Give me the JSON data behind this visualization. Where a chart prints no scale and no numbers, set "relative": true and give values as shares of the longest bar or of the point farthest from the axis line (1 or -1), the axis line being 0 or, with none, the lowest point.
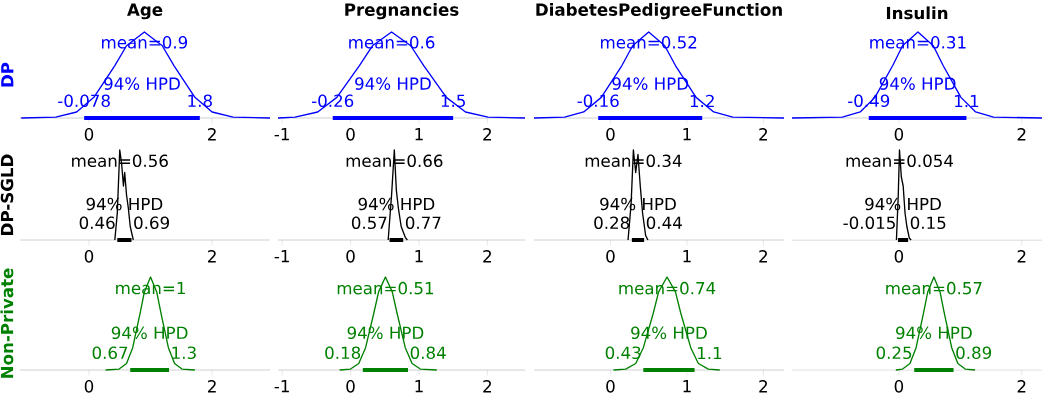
{
  "chart_data": [
    {
      "type": "line",
      "relative": true,
      "title": "Age",
      "ylabel": "DP",
      "xlim": [
        -1.12,
        2.94
      ],
      "xticks": [
        0,
        2
      ],
      "series": [
        {
          "color": "#0000ff",
          "x": [
            -1.1,
            -0.54,
            -0.2,
            0.08,
            0.42,
            0.61,
            0.9,
            1.19,
            1.38,
            1.72,
            2.0,
            2.34,
            2.94
          ],
          "values": [
            0,
            0.01,
            0.07,
            0.24,
            0.61,
            0.84,
            1,
            0.84,
            0.61,
            0.24,
            0.07,
            0.01,
            0
          ]
        },
        {
          "name": "94% HPD",
          "color": "#0000ff",
          "x": [
            -0.078,
            1.8
          ],
          "values": [
            0,
            0
          ]
        }
      ],
      "annotations": [
        "mean=0.9",
        {
          "text": "-0.078",
          "x": -0.078,
          "y": 0
        },
        {
          "text": "1.8",
          "x": 1.8,
          "y": 0
        }
      ]
    },
    {
      "type": "line",
      "relative": true,
      "title": "Pregnancies",
      "xlim": [
        -1.06,
        2.55
      ],
      "xticks": [
        -1,
        0,
        1,
        2
      ],
      "series": [
        {
          "color": "#0000ff",
          "x": [
            -1.06,
            -0.81,
            -0.48,
            -0.2,
            0.13,
            0.32,
            0.6,
            0.88,
            1.07,
            1.4,
            1.68,
            2.01,
            2.55
          ],
          "values": [
            0,
            0.01,
            0.07,
            0.24,
            0.61,
            0.84,
            1,
            0.84,
            0.61,
            0.24,
            0.07,
            0.01,
            0
          ]
        },
        {
          "name": "94% HPD",
          "color": "#0000ff",
          "x": [
            -0.26,
            1.5
          ],
          "values": [
            0,
            0
          ]
        }
      ],
      "annotations": [
        "mean=0.6",
        {
          "text": "-0.26",
          "x": -0.26,
          "y": 0
        },
        {
          "text": "1.5",
          "x": 1.5,
          "y": 0
        }
      ]
    },
    {
      "type": "line",
      "relative": true,
      "title": "DiabetesPedigreeFunction",
      "xlim": [
        -1.0,
        2.27
      ],
      "xticks": [
        0,
        1,
        2
      ],
      "series": [
        {
          "color": "#0000ff",
          "x": [
            -1.0,
            -0.6,
            -0.35,
            -0.12,
            0.15,
            0.29,
            0.5,
            0.71,
            0.85,
            1.12,
            1.35,
            1.6,
            2.27
          ],
          "values": [
            0,
            0.01,
            0.07,
            0.24,
            0.61,
            0.84,
            1,
            0.84,
            0.61,
            0.24,
            0.07,
            0.01,
            0
          ]
        },
        {
          "name": "94% HPD",
          "color": "#0000ff",
          "x": [
            -0.16,
            1.2
          ],
          "values": [
            0,
            0
          ]
        }
      ],
      "annotations": [
        "mean=0.52",
        {
          "text": "-0.16",
          "x": -0.16,
          "y": 0
        },
        {
          "text": "1.2",
          "x": 1.2,
          "y": 0
        }
      ]
    },
    {
      "type": "line",
      "relative": true,
      "title": "Insulin",
      "xlim": [
        -1.74,
        2.33
      ],
      "xticks": [
        0,
        2
      ],
      "series": [
        {
          "color": "#0000ff",
          "x": [
            -1.74,
            -0.92,
            -0.63,
            -0.39,
            -0.1,
            0.06,
            0.31,
            0.56,
            0.72,
            1.01,
            1.25,
            1.54,
            2.33
          ],
          "values": [
            0,
            0.01,
            0.07,
            0.24,
            0.61,
            0.84,
            1,
            0.84,
            0.61,
            0.24,
            0.07,
            0.01,
            0
          ]
        },
        {
          "name": "94% HPD",
          "color": "#0000ff",
          "x": [
            -0.49,
            1.1
          ],
          "values": [
            0,
            0
          ]
        }
      ],
      "annotations": [
        "mean=0.31",
        {
          "text": "-0.49",
          "x": -0.49,
          "y": 0
        },
        {
          "text": "1.1",
          "x": 1.1,
          "y": 0
        }
      ]
    },
    {
      "type": "line",
      "relative": true,
      "ylabel": "DP-SGLD",
      "xlim": [
        -1.12,
        2.94
      ],
      "xticks": [
        0,
        2
      ],
      "series": [
        {
          "color": "#000000",
          "x": [
            0.42,
            0.46,
            0.5,
            0.53,
            0.56,
            0.58,
            0.61,
            0.64,
            0.67,
            0.72
          ],
          "values": [
            0,
            0.3,
            1,
            0.85,
            0.6,
            0.75,
            0.5,
            0.35,
            0.15,
            0
          ]
        },
        {
          "name": "94% HPD",
          "color": "#000000",
          "x": [
            0.46,
            0.69
          ],
          "values": [
            0,
            0
          ]
        }
      ],
      "annotations": [
        "mean=0.56",
        {
          "text": "0.46",
          "x": 0.46,
          "y": 0
        },
        {
          "text": "0.69",
          "x": 0.69,
          "y": 0
        }
      ]
    },
    {
      "type": "line",
      "relative": true,
      "xlim": [
        -1.06,
        2.55
      ],
      "xticks": [
        -1,
        0,
        1,
        2
      ],
      "series": [
        {
          "color": "#000000",
          "x": [
            0.55,
            0.6,
            0.64,
            0.67,
            0.7,
            0.74,
            0.8,
            0.83
          ],
          "values": [
            0,
            0.5,
            1,
            0.55,
            0.35,
            0.15,
            0.03,
            0
          ]
        },
        {
          "name": "94% HPD",
          "color": "#000000",
          "x": [
            0.57,
            0.77
          ],
          "values": [
            0,
            0
          ]
        }
      ],
      "annotations": [
        "mean=0.66",
        {
          "text": "0.57",
          "x": 0.57,
          "y": 0
        },
        {
          "text": "0.77",
          "x": 0.77,
          "y": 0
        }
      ]
    },
    {
      "type": "line",
      "relative": true,
      "xlim": [
        -1.0,
        2.27
      ],
      "xticks": [
        0,
        1,
        2
      ],
      "series": [
        {
          "color": "#000000",
          "x": [
            0.23,
            0.27,
            0.3,
            0.33,
            0.36,
            0.39,
            0.42,
            0.46,
            0.49
          ],
          "values": [
            0,
            0.4,
            1,
            0.75,
            0.95,
            0.6,
            0.3,
            0.05,
            0
          ]
        },
        {
          "name": "94% HPD",
          "color": "#000000",
          "x": [
            0.28,
            0.44
          ],
          "values": [
            0,
            0
          ]
        }
      ],
      "annotations": [
        "mean=0.34",
        {
          "text": "0.28",
          "x": 0.28,
          "y": 0
        },
        {
          "text": "0.44",
          "x": 0.44,
          "y": 0
        }
      ]
    },
    {
      "type": "line",
      "relative": true,
      "xlim": [
        -1.74,
        2.33
      ],
      "xticks": [
        0,
        2
      ],
      "series": [
        {
          "color": "#000000",
          "x": [
            -0.04,
            -0.01,
            0.01,
            0.04,
            0.07,
            0.1,
            0.13,
            0.17,
            0.2
          ],
          "values": [
            0,
            0.5,
            1,
            0.7,
            0.6,
            0.3,
            0.15,
            0.02,
            0
          ]
        },
        {
          "name": "94% HPD",
          "color": "#000000",
          "x": [
            -0.015,
            0.15
          ],
          "values": [
            0,
            0
          ]
        }
      ],
      "annotations": [
        "mean=0.054",
        {
          "text": "-0.015",
          "x": -0.015,
          "y": 0
        },
        {
          "text": "0.15",
          "x": 0.15,
          "y": 0
        }
      ]
    },
    {
      "type": "line",
      "relative": true,
      "ylabel": "Non-Private",
      "xlim": [
        -1.12,
        2.94
      ],
      "xticks": [
        0,
        2
      ],
      "series": [
        {
          "color": "#008000",
          "x": [
            0.27,
            0.49,
            0.61,
            0.71,
            0.83,
            0.9,
            1.0,
            1.1,
            1.17,
            1.29,
            1.39,
            1.51,
            1.72
          ],
          "values": [
            0,
            0.01,
            0.07,
            0.24,
            0.61,
            0.84,
            1,
            0.84,
            0.61,
            0.24,
            0.07,
            0.01,
            0
          ]
        },
        {
          "name": "94% HPD",
          "color": "#008000",
          "x": [
            0.67,
            1.3
          ],
          "values": [
            0,
            0
          ]
        }
      ],
      "annotations": [
        "mean=1",
        {
          "text": "0.67",
          "x": 0.67,
          "y": 0
        },
        {
          "text": "1.3",
          "x": 1.3,
          "y": 0
        }
      ]
    },
    {
      "type": "line",
      "relative": true,
      "xlim": [
        -1.06,
        2.55
      ],
      "xticks": [
        -1,
        0,
        1,
        2
      ],
      "series": [
        {
          "color": "#008000",
          "x": [
            -0.16,
            0.0,
            0.12,
            0.22,
            0.34,
            0.41,
            0.51,
            0.61,
            0.68,
            0.8,
            0.9,
            1.02,
            1.26
          ],
          "values": [
            0,
            0.01,
            0.07,
            0.24,
            0.61,
            0.84,
            1,
            0.84,
            0.61,
            0.24,
            0.07,
            0.01,
            0
          ]
        },
        {
          "name": "94% HPD",
          "color": "#008000",
          "x": [
            0.18,
            0.84
          ],
          "values": [
            0,
            0
          ]
        }
      ],
      "annotations": [
        "mean=0.51",
        {
          "text": "0.18",
          "x": 0.18,
          "y": 0
        },
        {
          "text": "0.84",
          "x": 0.84,
          "y": 0
        }
      ]
    },
    {
      "type": "line",
      "relative": true,
      "xlim": [
        -1.0,
        2.27
      ],
      "xticks": [
        0,
        1,
        2
      ],
      "series": [
        {
          "color": "#008000",
          "x": [
            0.04,
            0.2,
            0.33,
            0.43,
            0.56,
            0.63,
            0.74,
            0.85,
            0.92,
            1.05,
            1.15,
            1.28,
            1.43
          ],
          "values": [
            0,
            0.01,
            0.07,
            0.24,
            0.61,
            0.84,
            1,
            0.84,
            0.61,
            0.24,
            0.07,
            0.01,
            0
          ]
        },
        {
          "name": "94% HPD",
          "color": "#008000",
          "x": [
            0.43,
            1.1
          ],
          "values": [
            0,
            0
          ]
        }
      ],
      "annotations": [
        "mean=0.74",
        {
          "text": "0.43",
          "x": 0.43,
          "y": 0
        },
        {
          "text": "1.1",
          "x": 1.1,
          "y": 0
        }
      ]
    },
    {
      "type": "line",
      "relative": true,
      "xlim": [
        -1.74,
        2.33
      ],
      "xticks": [
        0,
        2
      ],
      "series": [
        {
          "color": "#008000",
          "x": [
            -0.05,
            0.06,
            0.18,
            0.28,
            0.4,
            0.47,
            0.57,
            0.67,
            0.74,
            0.86,
            0.96,
            1.08,
            1.24
          ],
          "values": [
            0,
            0.01,
            0.07,
            0.24,
            0.61,
            0.84,
            1,
            0.84,
            0.61,
            0.24,
            0.07,
            0.01,
            0
          ]
        },
        {
          "name": "94% HPD",
          "color": "#008000",
          "x": [
            0.25,
            0.89
          ],
          "values": [
            0,
            0
          ]
        }
      ],
      "annotations": [
        "mean=0.57",
        {
          "text": "0.25",
          "x": 0.25,
          "y": 0
        },
        {
          "text": "0.89",
          "x": 0.89,
          "y": 0
        }
      ]
    }
  ]
}
